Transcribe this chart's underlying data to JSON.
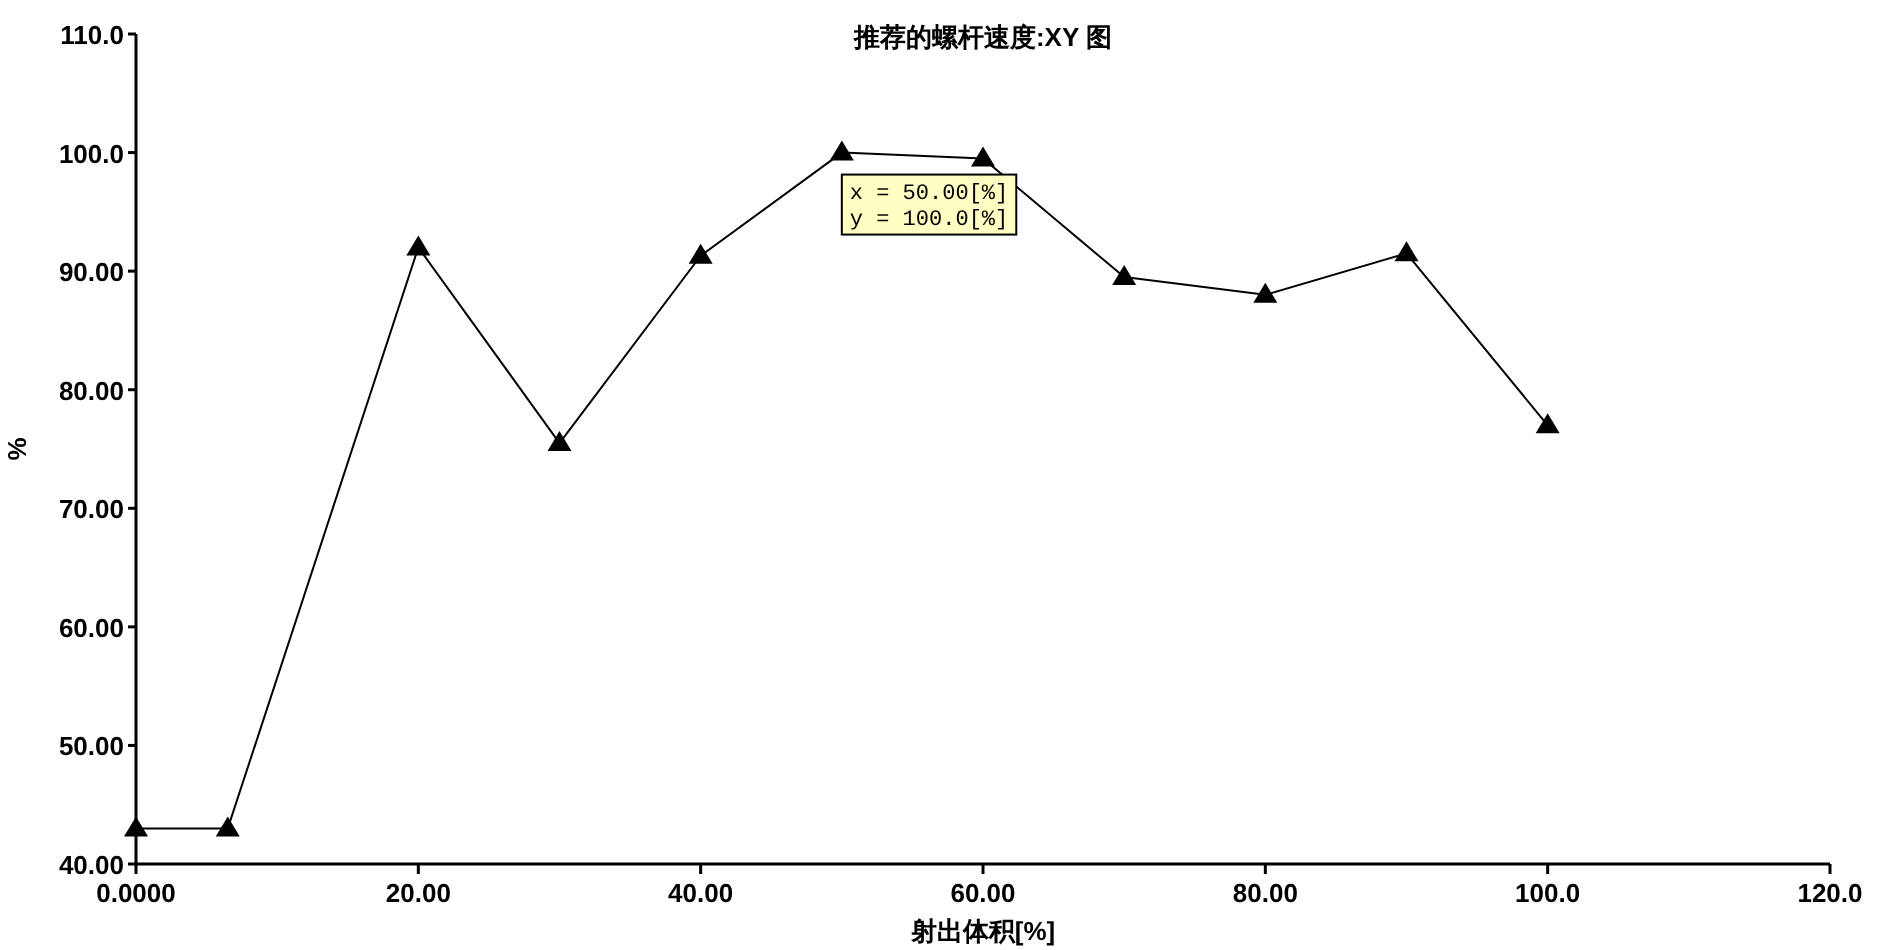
{
  "chart_data": {
    "type": "line",
    "title": "推荐的螺杆速度:XY 图",
    "xlabel": "射出体积[%]",
    "ylabel": "%",
    "x": [
      0,
      6.5,
      20,
      30,
      40,
      50,
      60,
      70,
      80,
      90,
      100
    ],
    "values": [
      43,
      43,
      92,
      75.5,
      91.3,
      100,
      99.5,
      89.5,
      88,
      91.5,
      77
    ],
    "color": "#000000",
    "marker": "triangle",
    "line_style": "solid",
    "xlim": [
      0,
      120
    ],
    "ylim": [
      40,
      110
    ],
    "xticks": [
      {
        "value": 0,
        "label": "0.0000"
      },
      {
        "value": 20,
        "label": "20.00"
      },
      {
        "value": 40,
        "label": "40.00"
      },
      {
        "value": 60,
        "label": "60.00"
      },
      {
        "value": 80,
        "label": "80.00"
      },
      {
        "value": 100,
        "label": "100.0"
      },
      {
        "value": 120,
        "label": "120.0"
      }
    ],
    "yticks": [
      {
        "value": 40,
        "label": "40.00"
      },
      {
        "value": 50,
        "label": "50.00"
      },
      {
        "value": 60,
        "label": "60.00"
      },
      {
        "value": 70,
        "label": "70.00"
      },
      {
        "value": 80,
        "label": "80.00"
      },
      {
        "value": 90,
        "label": "90.00"
      },
      {
        "value": 100,
        "label": "100.0"
      },
      {
        "value": 110,
        "label": "110.0"
      }
    ],
    "annotations": [
      {
        "text": "x = 50.00[%]\ny = 100.0[%]",
        "x": 50,
        "y": 100
      }
    ]
  }
}
